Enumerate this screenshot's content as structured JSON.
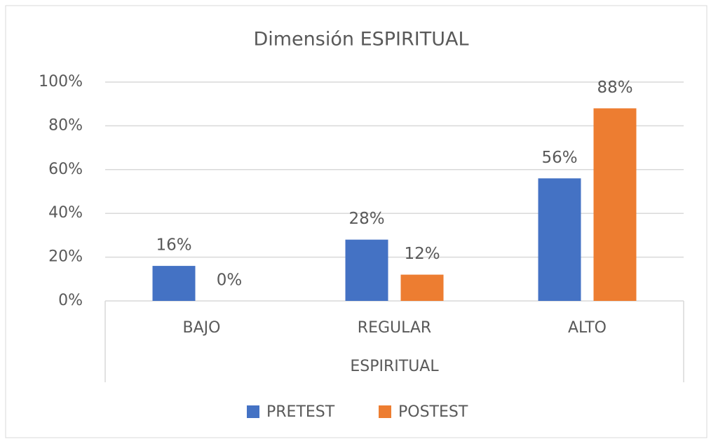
{
  "chart_data": {
    "type": "bar",
    "title": "Dimensión ESPIRITUAL",
    "categories": [
      "BAJO",
      "REGULAR",
      "ALTO"
    ],
    "x_group_label": "ESPIRITUAL",
    "series": [
      {
        "name": "PRETEST",
        "color": "#4472c4",
        "values": [
          16,
          28,
          56
        ],
        "value_labels": [
          "16%",
          "28%",
          "56%"
        ]
      },
      {
        "name": "POSTEST",
        "color": "#ed7d31",
        "values": [
          0,
          12,
          88
        ],
        "value_labels": [
          "0%",
          "12%",
          "88%"
        ]
      }
    ],
    "ylim": [
      0,
      100
    ],
    "yticks": [
      {
        "value": 0,
        "label": "0%"
      },
      {
        "value": 20,
        "label": "20%"
      },
      {
        "value": 40,
        "label": "40%"
      },
      {
        "value": 60,
        "label": "60%"
      },
      {
        "value": 80,
        "label": "80%"
      },
      {
        "value": 100,
        "label": "100%"
      }
    ],
    "grid": true,
    "legend": "bottom"
  }
}
